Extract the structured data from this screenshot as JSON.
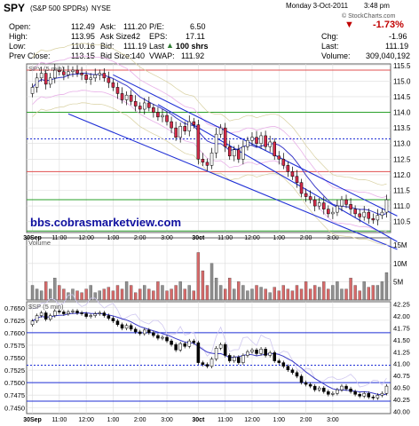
{
  "header": {
    "symbol": "SPY",
    "name": "(S&P 500 SPDRs)",
    "exchange": "NYSE",
    "date": "Monday  3-Oct-2011",
    "time": "3:48 pm",
    "credit": "© StockCharts.com",
    "change_pct": "-1.73%",
    "left": [
      {
        "label": "Open:",
        "value": "112.49"
      },
      {
        "label": "High:",
        "value": "113.95"
      },
      {
        "label": "Low:",
        "value": "110.16"
      },
      {
        "label": "Prev Close:",
        "value": "113.15"
      }
    ],
    "mid1": [
      {
        "label": "Ask:",
        "value": "111.20"
      },
      {
        "label": "Ask Size:",
        "value": "42"
      },
      {
        "label": "Bid:",
        "value": "111.19"
      },
      {
        "label": "Bid Size:",
        "value": "140"
      }
    ],
    "mid2": [
      {
        "label": "P/E:",
        "value": "6.50"
      },
      {
        "label": "EPS:",
        "value": "17.11"
      },
      {
        "label": "Last",
        "value": "100 shrs"
      },
      {
        "label": "VWAP:",
        "value": "111.92"
      }
    ],
    "right": [
      {
        "label": "Chg:",
        "value": "-1.96"
      },
      {
        "label": "Last:",
        "value": "111.19"
      },
      {
        "label": "Volume:",
        "value": "309,040,192"
      }
    ]
  },
  "colors": {
    "up": "#2e7d32",
    "down": "#c00000",
    "candle_up": "#ffffff",
    "candle_down": "#d62c4a",
    "trend": "#1f2fd6",
    "red_line": "#e05050",
    "green_line": "#2aa02a",
    "panel_border": "#606060",
    "grid": "#dcdcdc"
  },
  "chart_data": [
    {
      "type": "candlestick",
      "panel_label": "SPY (5 min)",
      "y_ticks": [
        110.5,
        111.0,
        111.5,
        112.0,
        112.5,
        113.0,
        113.5,
        114.0,
        114.5,
        115.0,
        115.5
      ],
      "ylim": [
        110.15,
        115.55
      ],
      "x_labels": [
        "30Sep",
        "11:00",
        "12:00",
        "1:00",
        "2:00",
        "3:00",
        "30ct",
        "11:00",
        "12:00",
        "1:00",
        "2:00",
        "3:00"
      ],
      "close": [
        114.8,
        115.1,
        115.25,
        114.9,
        115.1,
        115.35,
        115.3,
        115.2,
        115.3,
        115.35,
        115.25,
        115.2,
        115.05,
        115.1,
        115.2,
        115.25,
        115.1,
        114.95,
        114.8,
        114.6,
        114.4,
        114.55,
        114.35,
        114.2,
        114.1,
        114.3,
        114.15,
        114.0,
        113.85,
        113.9,
        113.7,
        113.5,
        113.2,
        113.55,
        113.4,
        113.7,
        113.6,
        112.5,
        112.4,
        112.3,
        112.7,
        113.3,
        113.5,
        112.9,
        112.6,
        112.8,
        112.5,
        112.9,
        113.1,
        113.2,
        113.0,
        113.25,
        112.9,
        113.05,
        112.6,
        112.5,
        112.3,
        112.1,
        111.95,
        111.75,
        111.4,
        111.3,
        111.2,
        111.0,
        111.1,
        110.9,
        110.75,
        110.8,
        111.0,
        111.2,
        111.05,
        110.9,
        110.75,
        110.65,
        110.8,
        110.6,
        110.55,
        110.7,
        110.8,
        111.2
      ],
      "reference_lines": [
        {
          "value": 115.35,
          "style": "red"
        },
        {
          "value": 114.0,
          "style": "green"
        },
        {
          "value": 113.15,
          "style": "blue-dash"
        },
        {
          "value": 112.1,
          "style": "red"
        },
        {
          "value": 111.2,
          "style": "green"
        },
        {
          "value": 110.2,
          "style": "green"
        }
      ],
      "trendlines": [
        {
          "from": [
            18,
            115.2
          ],
          "to": [
            79,
            110.85
          ]
        },
        {
          "from": [
            28,
            114.25
          ],
          "to": [
            79,
            110.05
          ]
        },
        {
          "from": [
            8,
            113.95
          ],
          "to": [
            79,
            109.75
          ]
        }
      ],
      "watermark": "bbs.cobrasmarketview.com"
    },
    {
      "type": "bar",
      "panel_label": "Volume",
      "y_ticks": [
        "15M",
        "10M",
        "5M"
      ],
      "ylim": [
        0,
        17
      ],
      "values": [
        4,
        3,
        2.5,
        5,
        3,
        6,
        4,
        3,
        2,
        3,
        2.5,
        2,
        3,
        4,
        2,
        2.5,
        3,
        3.5,
        2.5,
        4,
        3,
        5,
        4,
        2,
        3,
        4,
        3,
        2.5,
        5,
        4,
        2.5,
        3,
        4,
        5,
        3,
        4,
        2.5,
        13,
        8,
        4,
        10,
        6,
        4,
        3,
        6,
        3,
        5,
        4,
        2.5,
        3,
        4,
        3.5,
        3,
        2,
        3.5,
        2.5,
        4,
        3,
        2.5,
        4,
        3,
        5,
        3,
        4,
        3.5,
        5,
        3,
        4,
        5,
        3,
        3,
        6,
        4,
        2.5,
        5,
        3.5,
        4,
        4,
        5,
        7.5
      ]
    },
    {
      "type": "line",
      "panel_label": "$SP (5 min)",
      "y_ticks_left": [
        0.745,
        0.7475,
        0.75,
        0.7525,
        0.755,
        0.7575,
        0.76,
        0.7625,
        0.765
      ],
      "y_ticks_right": [
        40.0,
        40.25,
        40.5,
        40.75,
        41.0,
        41.25,
        41.5,
        41.75,
        42.0,
        42.25
      ],
      "ylim_left": [
        0.7438,
        0.7662
      ],
      "ylim_right": [
        39.95,
        42.3
      ],
      "reference_lines": [
        {
          "value": 0.76,
          "style": "blue"
        },
        {
          "value": 0.7535,
          "style": "blue-dash"
        },
        {
          "value": 0.75,
          "style": "blue"
        },
        {
          "value": 0.7463,
          "style": "blue"
        }
      ]
    }
  ]
}
